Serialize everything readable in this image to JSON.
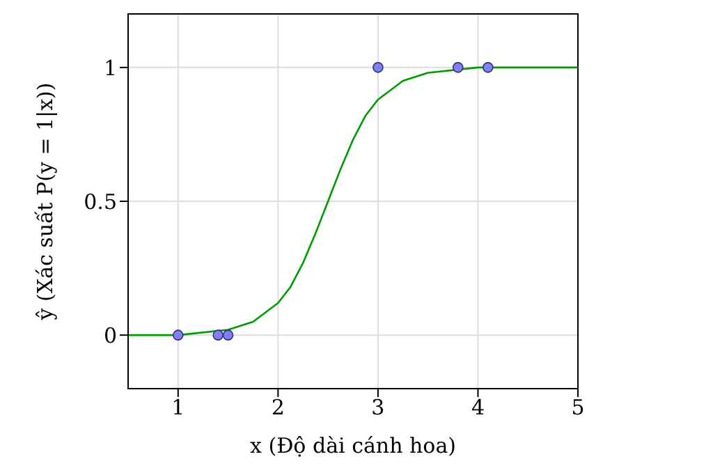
{
  "chart_data": {
    "type": "scatter",
    "xlabel": "x (Độ dài cánh hoa)",
    "ylabel": "ŷ (Xác suất P(y = 1|x))",
    "xlim": [
      0.5,
      5
    ],
    "ylim": [
      -0.2,
      1.2
    ],
    "xticks": [
      1,
      2,
      3,
      4,
      5
    ],
    "yticks": [
      0,
      0.5,
      1
    ],
    "grid": true,
    "series": [
      {
        "type": "line",
        "color": "#009900",
        "marker": "none",
        "x": [
          0.5,
          1,
          1.5,
          1.75,
          2,
          2.125,
          2.25,
          2.375,
          2.5,
          2.625,
          2.75,
          2.875,
          3,
          3.25,
          3.5,
          4,
          4.5,
          5
        ],
        "values": [
          0,
          0,
          0.02,
          0.05,
          0.12,
          0.18,
          0.27,
          0.38,
          0.5,
          0.62,
          0.73,
          0.82,
          0.88,
          0.95,
          0.98,
          1,
          1,
          1
        ]
      },
      {
        "color": "#7f7fff",
        "marker": "circle",
        "x": [
          1,
          1.4,
          1.5,
          3,
          3.8,
          4.1
        ],
        "values": [
          0,
          0,
          0,
          1,
          1,
          1
        ]
      }
    ]
  }
}
